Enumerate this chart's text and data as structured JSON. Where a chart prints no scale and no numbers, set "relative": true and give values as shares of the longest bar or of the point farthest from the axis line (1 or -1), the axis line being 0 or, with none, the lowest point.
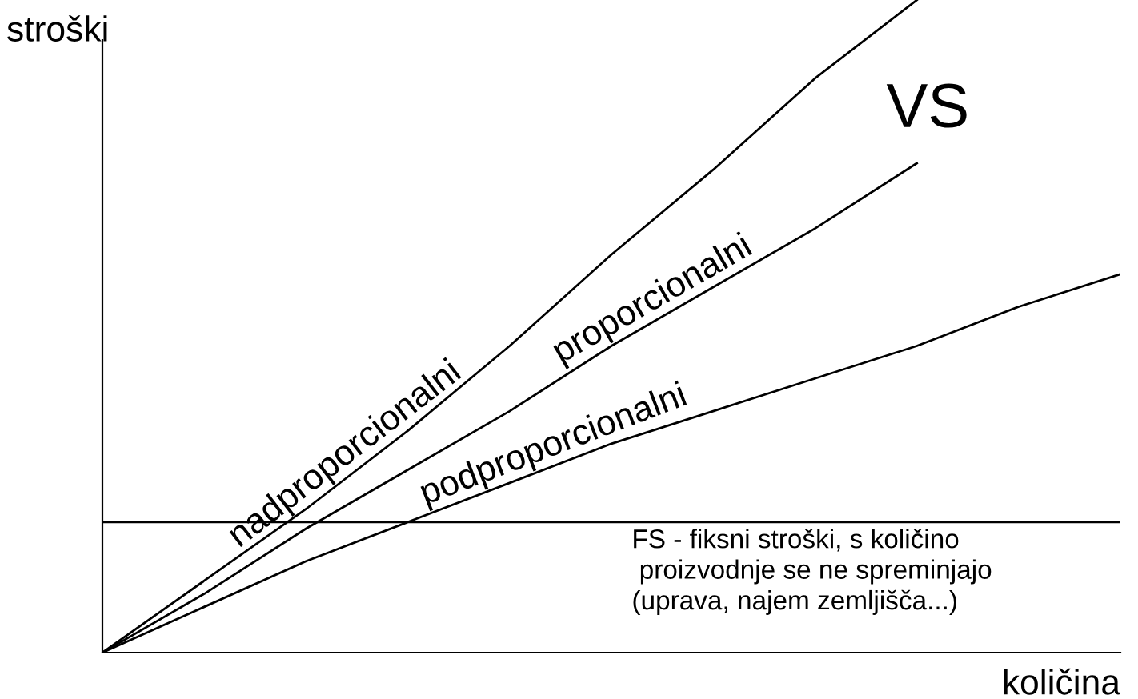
{
  "chart_data": {
    "type": "line",
    "relative": true,
    "ylabel": "stroški",
    "xlabel": "količina",
    "legend": false,
    "grid": false,
    "categories": [
      null,
      null,
      null,
      null,
      null,
      null,
      null,
      null,
      null,
      null,
      null
    ],
    "series": [
      {
        "name": "nadproporcionalni",
        "color": "#000000",
        "values": [
          0,
          0.11,
          0.22,
          0.34,
          0.47,
          0.61,
          0.74,
          0.88,
          1.0,
          null,
          null
        ]
      },
      {
        "name": "proporcionalni",
        "color": "#000000",
        "values": [
          0,
          0.09,
          0.19,
          0.28,
          0.37,
          0.47,
          0.56,
          0.65,
          0.75,
          null,
          null
        ]
      },
      {
        "name": "podproporcionalni",
        "color": "#000000",
        "values": [
          0,
          0.07,
          0.14,
          0.2,
          0.26,
          0.32,
          0.37,
          0.42,
          0.47,
          0.53,
          0.58
        ]
      }
    ],
    "ref_lines": [
      {
        "axis": "y",
        "value": 0.2,
        "label": "FS - fiksni stroški, s količino\n proizvodnje se ne spreminjajo\n(uprava, najem zemljišča...)",
        "color": "#000000"
      }
    ],
    "annotations": [
      "VS"
    ]
  }
}
